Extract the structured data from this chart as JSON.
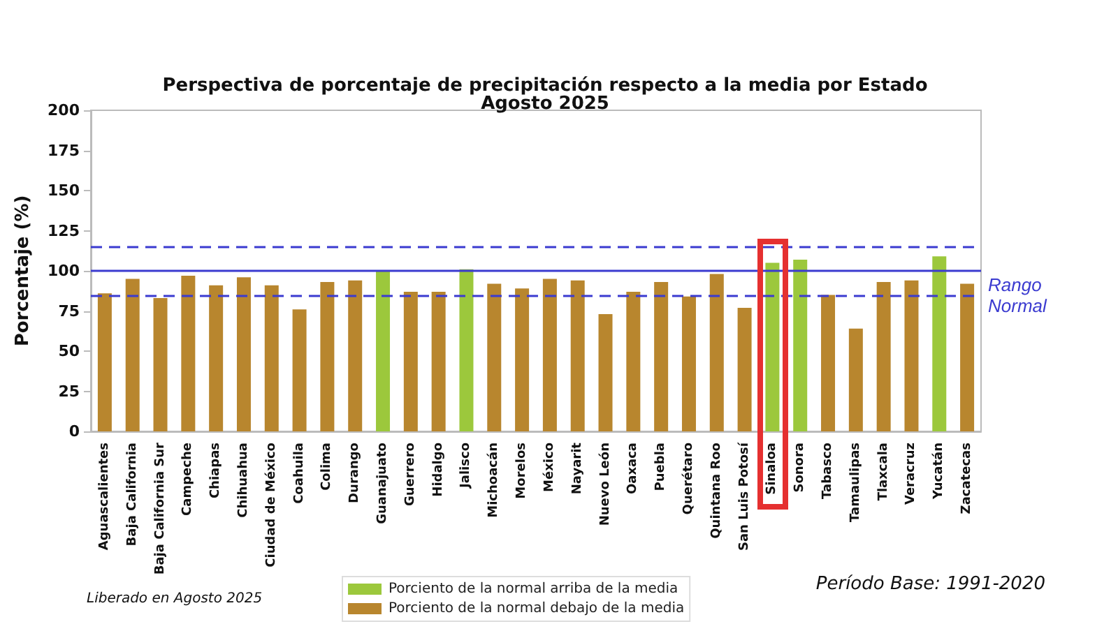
{
  "chart_data": {
    "type": "bar",
    "title": "Perspectiva de porcentaje de precipitación respecto a la media por Estado",
    "subtitle": "Agosto 2025",
    "ylabel": "Porcentaje (%)",
    "categories": [
      "Aguascalientes",
      "Baja California",
      "Baja California Sur",
      "Campeche",
      "Chiapas",
      "Chihuahua",
      "Ciudad de México",
      "Coahuila",
      "Colima",
      "Durango",
      "Guanajuato",
      "Guerrero",
      "Hidalgo",
      "Jalisco",
      "Michoacán",
      "Morelos",
      "México",
      "Nayarit",
      "Nuevo León",
      "Oaxaca",
      "Puebla",
      "Querétaro",
      "Quintana Roo",
      "San Luis Potosí",
      "Sinaloa",
      "Sonora",
      "Tabasco",
      "Tamaulipas",
      "Tlaxcala",
      "Veracruz",
      "Yucatán",
      "Zacatecas"
    ],
    "series": [
      {
        "name": "Porciento de la normal arriba de la media",
        "color": "#9cc83c",
        "values": [
          null,
          null,
          null,
          null,
          null,
          null,
          null,
          null,
          null,
          null,
          100,
          null,
          null,
          101,
          null,
          null,
          null,
          null,
          null,
          null,
          null,
          null,
          null,
          null,
          105,
          107,
          null,
          null,
          null,
          null,
          109,
          null
        ]
      },
      {
        "name": "Porciento de la normal debajo de la media",
        "color": "#b8862e",
        "values": [
          86,
          95,
          83,
          97,
          91,
          96,
          91,
          76,
          93,
          94,
          null,
          87,
          87,
          null,
          92,
          89,
          95,
          94,
          73,
          87,
          93,
          84,
          98,
          77,
          null,
          null,
          85,
          64,
          93,
          94,
          null,
          92
        ]
      }
    ],
    "ylim": [
      0,
      200
    ],
    "yticks": [
      0,
      25,
      50,
      75,
      100,
      125,
      150,
      175,
      200
    ],
    "ref_lines": [
      {
        "axis": "y",
        "value": 115,
        "color": "#3b3bd0",
        "line_style": "dashed"
      },
      {
        "axis": "y",
        "value": 100,
        "color": "#3b3bd0",
        "line_style": "solid"
      },
      {
        "axis": "y",
        "value": 85,
        "color": "#3b3bd0",
        "line_style": "dashed",
        "label": "Rango\nNormal"
      }
    ],
    "annotations": [
      "Liberado en Agosto 2025",
      "Período Base: 1991-2020"
    ],
    "legend": "bottom",
    "grid": false
  }
}
